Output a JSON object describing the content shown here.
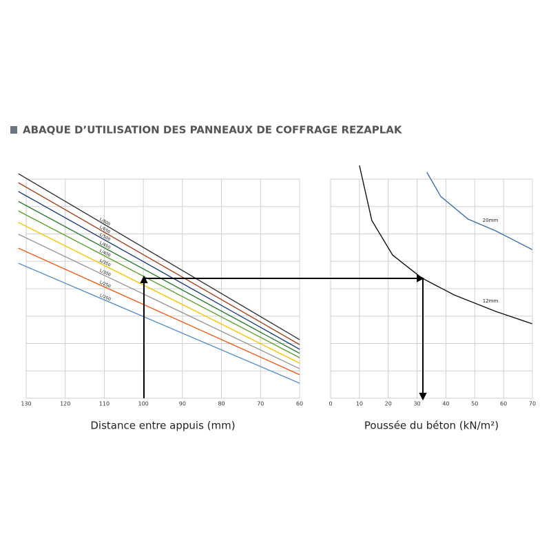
{
  "title": "ABAQUE D’UTILISATION DES PANNEAUX DE COFFRAGE REZAPLAK",
  "chart_data": [
    {
      "type": "line",
      "xlabel": "Distance entre appuis (mm)",
      "xlim": [
        130,
        60
      ],
      "xticks": [
        130,
        120,
        110,
        100,
        90,
        80,
        70,
        60
      ],
      "ylim": [
        0,
        8
      ],
      "yticks": [
        0,
        1,
        2,
        3,
        4,
        5,
        6,
        7,
        8
      ],
      "ytick_labels": false,
      "grid": true,
      "series": [
        {
          "name": "L/800",
          "color": "#333333",
          "x": [
            132,
            60
          ],
          "values": [
            8.2,
            2.14
          ]
        },
        {
          "name": "L/650",
          "color": "#a0461e",
          "x": [
            132,
            60
          ],
          "values": [
            7.87,
            1.96
          ]
        },
        {
          "name": "L/500",
          "color": "#1f3f7a",
          "x": [
            132,
            60
          ],
          "values": [
            7.55,
            1.79
          ]
        },
        {
          "name": "L/450",
          "color": "#2e7d32",
          "x": [
            132,
            60
          ],
          "values": [
            7.19,
            1.64
          ]
        },
        {
          "name": "L/400",
          "color": "#5aa02c",
          "x": [
            132,
            60
          ],
          "values": [
            6.84,
            1.48
          ]
        },
        {
          "name": "L/350",
          "color": "#f2c500",
          "x": [
            132,
            60
          ],
          "values": [
            6.42,
            1.28
          ]
        },
        {
          "name": "L/300",
          "color": "#999999",
          "x": [
            132,
            60
          ],
          "values": [
            5.99,
            1.08
          ]
        },
        {
          "name": "L/250",
          "color": "#e8601c",
          "x": [
            132,
            60
          ],
          "values": [
            5.48,
            0.86
          ]
        },
        {
          "name": "L/200",
          "color": "#5b8fc7",
          "x": [
            132,
            60
          ],
          "values": [
            4.93,
            0.55
          ]
        }
      ]
    },
    {
      "type": "line",
      "xlabel": "Poussée du béton (kN/m²)",
      "xlim": [
        0,
        70
      ],
      "xticks": [
        0,
        10,
        20,
        30,
        40,
        50,
        60,
        70
      ],
      "ylim": [
        0,
        8
      ],
      "yticks": [
        0,
        1,
        2,
        3,
        4,
        5,
        6,
        7,
        8
      ],
      "ytick_labels": false,
      "grid": true,
      "series": [
        {
          "name": "20mm",
          "color": "#3a6ea5",
          "x": [
            33.4,
            38.2,
            47.7,
            57.3,
            69.9
          ],
          "values": [
            8.25,
            7.37,
            6.54,
            6.11,
            5.43
          ]
        },
        {
          "name": "12mm",
          "color": "#111111",
          "x": [
            10.0,
            14.3,
            21.5,
            31.5,
            42.9,
            57.3,
            69.9
          ],
          "values": [
            8.5,
            6.49,
            5.23,
            4.4,
            3.77,
            3.17,
            2.72
          ]
        }
      ]
    }
  ]
}
